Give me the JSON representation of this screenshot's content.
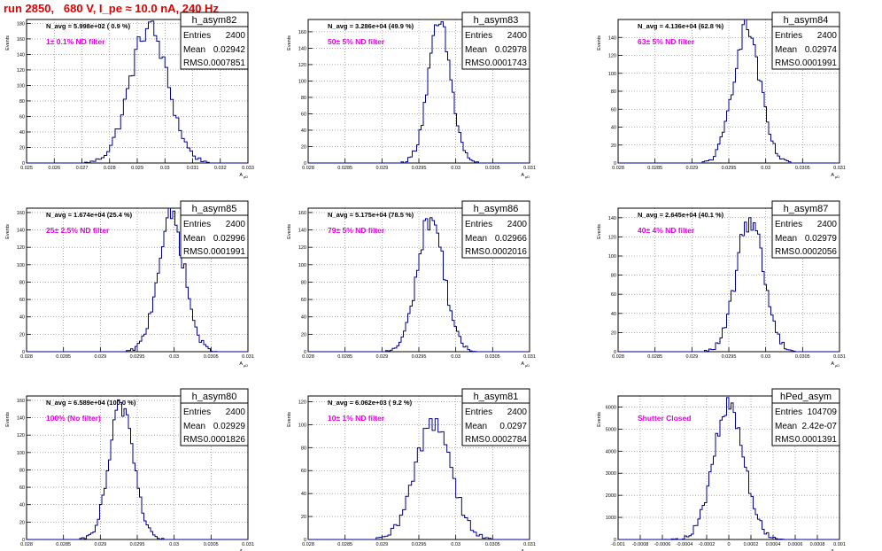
{
  "run_title": "run 2850,   680 V, I_pe ≈ 10.0 nA, 240 Hz",
  "y_axis_label": "Events",
  "x_axis_label_main": "A",
  "x_axis_label_sub": "μD",
  "colors": {
    "histogram": "#00008b",
    "title": "#e00000",
    "annotation": "#e000e0",
    "grid": "#777777"
  },
  "stats_labels": {
    "entries": "Entries",
    "mean": "Mean",
    "rms": "RMS"
  },
  "chart_data": [
    {
      "type": "histogram",
      "name": "h_asym82",
      "avg_label": "N_avg = 5.998e+02 ( 0.9 %)",
      "annotation": "1± 0.1% ND filter",
      "stats": {
        "entries": "2400",
        "mean": "0.02942",
        "rms": "0.0007851"
      },
      "xlim": [
        0.025,
        0.033
      ],
      "ylim": [
        0,
        185
      ],
      "x_ticks": [
        "0.025",
        "0.026",
        "0.027",
        "0.028",
        "0.029",
        "0.03",
        "0.031",
        "0.032",
        "0.033"
      ],
      "y_ticks": [
        0,
        20,
        40,
        60,
        80,
        100,
        120,
        140,
        160,
        180
      ],
      "peak_center": 0.02942,
      "peak_sigma": 0.00068,
      "peak_height": 175,
      "bin_width": 0.0001
    },
    {
      "type": "histogram",
      "name": "h_asym83",
      "avg_label": "N_avg = 3.286e+04 (49.9 %)",
      "annotation": "50± 5% ND filter",
      "stats": {
        "entries": "2400",
        "mean": "0.02978",
        "rms": "0.0001743"
      },
      "xlim": [
        0.028,
        0.031
      ],
      "ylim": [
        0,
        175
      ],
      "x_ticks": [
        "0.028",
        "0.0285",
        "0.029",
        "0.0295",
        "0.03",
        "0.0305",
        "0.031"
      ],
      "y_ticks": [
        0,
        20,
        40,
        60,
        80,
        100,
        120,
        140,
        160
      ],
      "peak_center": 0.02978,
      "peak_sigma": 0.000155,
      "peak_height": 168,
      "bin_width": 3e-05
    },
    {
      "type": "histogram",
      "name": "h_asym84",
      "avg_label": "N_avg = 4.136e+04 (62.8 %)",
      "annotation": "63± 5% ND filter",
      "stats": {
        "entries": "2400",
        "mean": "0.02974",
        "rms": "0.0001991"
      },
      "xlim": [
        0.028,
        0.031
      ],
      "ylim": [
        0,
        160
      ],
      "x_ticks": [
        "0.028",
        "0.0285",
        "0.029",
        "0.0295",
        "0.03",
        "0.0305",
        "0.031"
      ],
      "y_ticks": [
        0,
        20,
        40,
        60,
        80,
        100,
        120,
        140
      ],
      "peak_center": 0.02974,
      "peak_sigma": 0.00018,
      "peak_height": 152,
      "bin_width": 3e-05
    },
    {
      "type": "histogram",
      "name": "h_asym85",
      "avg_label": "N_avg = 1.674e+04 (25.4 %)",
      "annotation": "25± 2.5% ND filter",
      "stats": {
        "entries": "2400",
        "mean": "0.02996",
        "rms": "0.0001991"
      },
      "xlim": [
        0.028,
        0.031
      ],
      "ylim": [
        0,
        165
      ],
      "x_ticks": [
        "0.028",
        "0.0285",
        "0.029",
        "0.0295",
        "0.03",
        "0.0305",
        "0.031"
      ],
      "y_ticks": [
        0,
        20,
        40,
        60,
        80,
        100,
        120,
        140,
        160
      ],
      "peak_center": 0.02996,
      "peak_sigma": 0.00018,
      "peak_height": 155,
      "bin_width": 3e-05
    },
    {
      "type": "histogram",
      "name": "h_asym86",
      "avg_label": "N_avg = 5.175e+04 (78.5 %)",
      "annotation": "79± 5% ND filter",
      "stats": {
        "entries": "2400",
        "mean": "0.02966",
        "rms": "0.0002016"
      },
      "xlim": [
        0.028,
        0.031
      ],
      "ylim": [
        0,
        165
      ],
      "x_ticks": [
        "0.028",
        "0.0285",
        "0.029",
        "0.0295",
        "0.03",
        "0.0305",
        "0.031"
      ],
      "y_ticks": [
        0,
        20,
        40,
        60,
        80,
        100,
        120,
        140,
        160
      ],
      "peak_center": 0.02966,
      "peak_sigma": 0.00018,
      "peak_height": 155,
      "bin_width": 3e-05
    },
    {
      "type": "histogram",
      "name": "h_asym87",
      "avg_label": "N_avg = 2.645e+04 (40.1 %)",
      "annotation": "40± 4% ND filter",
      "stats": {
        "entries": "2400",
        "mean": "0.02979",
        "rms": "0.0002056"
      },
      "xlim": [
        0.028,
        0.031
      ],
      "ylim": [
        0,
        150
      ],
      "x_ticks": [
        "0.028",
        "0.0285",
        "0.029",
        "0.0295",
        "0.03",
        "0.0305",
        "0.031"
      ],
      "y_ticks": [
        0,
        20,
        40,
        60,
        80,
        100,
        120,
        140
      ],
      "peak_center": 0.02979,
      "peak_sigma": 0.000185,
      "peak_height": 140,
      "bin_width": 3e-05
    },
    {
      "type": "histogram",
      "name": "h_asym80",
      "avg_label": "N_avg = 6.589e+04 (100.0 %)",
      "annotation": "100% (No filter)",
      "stats": {
        "entries": "2400",
        "mean": "0.02929",
        "rms": "0.0001826"
      },
      "xlim": [
        0.028,
        0.031
      ],
      "ylim": [
        0,
        165
      ],
      "x_ticks": [
        "0.028",
        "0.0285",
        "0.029",
        "0.0295",
        "0.03",
        "0.0305",
        "0.031"
      ],
      "y_ticks": [
        0,
        20,
        40,
        60,
        80,
        100,
        120,
        140,
        160
      ],
      "peak_center": 0.02929,
      "peak_sigma": 0.000165,
      "peak_height": 155,
      "bin_width": 3e-05
    },
    {
      "type": "histogram",
      "name": "h_asym81",
      "avg_label": "N_avg = 6.062e+03 ( 9.2 %)",
      "annotation": "10± 1% ND filter",
      "stats": {
        "entries": "2400",
        "mean": "0.0297",
        "rms": "0.0002784"
      },
      "xlim": [
        0.028,
        0.031
      ],
      "ylim": [
        0,
        125
      ],
      "x_ticks": [
        "0.028",
        "0.0285",
        "0.029",
        "0.0295",
        "0.03",
        "0.0305",
        "0.031"
      ],
      "y_ticks": [
        0,
        20,
        40,
        60,
        80,
        100,
        120
      ],
      "peak_center": 0.0297,
      "peak_sigma": 0.00024,
      "peak_height": 105,
      "bin_width": 4e-05
    },
    {
      "type": "histogram",
      "name": "hPed_asym",
      "avg_label": "",
      "annotation": "Shutter Closed",
      "stats": {
        "entries": "104709",
        "mean": "2.42e-07",
        "rms": "0.0001391"
      },
      "xlim": [
        -0.001,
        0.001
      ],
      "ylim": [
        0,
        6500
      ],
      "x_ticks": [
        "-0.001",
        "-0.0008",
        "-0.0006",
        "-0.0004",
        "-0.0002",
        "0",
        "0.0002",
        "0.0004",
        "0.0006",
        "0.0008",
        "0.001"
      ],
      "y_ticks": [
        0,
        1000,
        2000,
        3000,
        4000,
        5000,
        6000
      ],
      "peak_center": 2e-07,
      "peak_sigma": 0.000139,
      "peak_height": 6000,
      "bin_width": 2e-05
    }
  ]
}
